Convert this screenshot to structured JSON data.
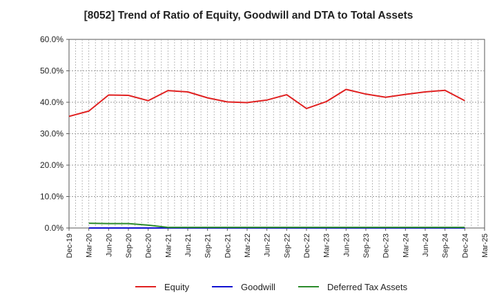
{
  "chart_data": {
    "type": "line",
    "title": "[8052]  Trend of Ratio of Equity, Goodwill and DTA to Total Assets",
    "xlabel": "",
    "ylabel": "",
    "ylim": [
      0,
      60
    ],
    "y_ticks": [
      "0.0%",
      "10.0%",
      "20.0%",
      "30.0%",
      "40.0%",
      "50.0%",
      "60.0%"
    ],
    "x_ticks": [
      "Dec-19",
      "Mar-20",
      "Jun-20",
      "Sep-20",
      "Dec-20",
      "Mar-21",
      "Jun-21",
      "Sep-21",
      "Dec-21",
      "Mar-22",
      "Jun-22",
      "Sep-22",
      "Dec-22",
      "Mar-23",
      "Jun-23",
      "Sep-23",
      "Dec-23",
      "Mar-24",
      "Jun-24",
      "Sep-24",
      "Dec-24",
      "Mar-25"
    ],
    "grid": true,
    "legend_position": "bottom",
    "series": [
      {
        "name": "Equity",
        "color": "#e02020",
        "values": [
          35.5,
          37.2,
          42.3,
          42.2,
          40.5,
          43.7,
          43.3,
          41.4,
          40.1,
          39.9,
          40.7,
          42.4,
          38.0,
          40.2,
          44.1,
          42.6,
          41.6,
          42.5,
          43.3,
          43.8,
          40.5,
          null
        ]
      },
      {
        "name": "Goodwill",
        "color": "#1010d0",
        "values": [
          null,
          0,
          0,
          0,
          0,
          0,
          0,
          0,
          0,
          0,
          0,
          0,
          0,
          0,
          0,
          0,
          0,
          0,
          0,
          0,
          0,
          null
        ]
      },
      {
        "name": "Deferred Tax Assets",
        "color": "#2a8a2a",
        "values": [
          null,
          1.5,
          1.4,
          1.4,
          0.9,
          0.2,
          0.2,
          0.2,
          0.2,
          0.2,
          0.2,
          0.2,
          0.2,
          0.2,
          0.2,
          0.2,
          0.2,
          0.2,
          0.2,
          0.2,
          0.2,
          null
        ]
      }
    ]
  }
}
